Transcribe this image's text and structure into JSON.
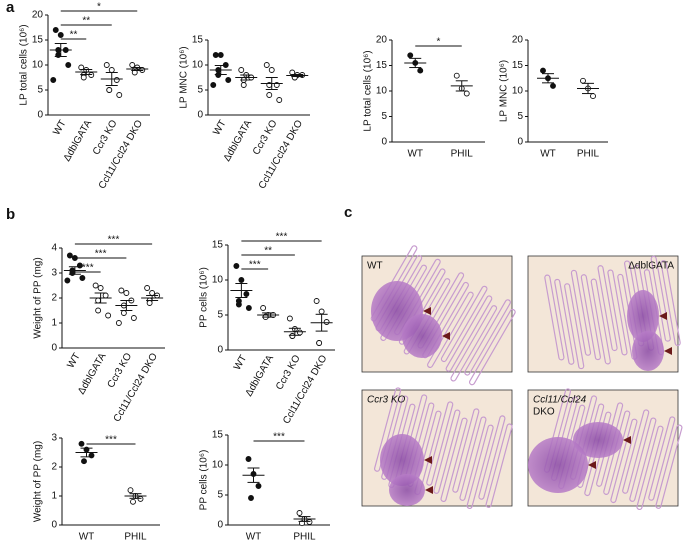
{
  "panel_labels": [
    "a",
    "b",
    "c"
  ],
  "chart_data": [
    {
      "type": "dot",
      "y_label": "LP total cells (10⁶)",
      "categories": [
        "WT",
        "ΔdblGATA",
        "Ccr3 KO",
        "Ccl11/Ccl24 DKO"
      ],
      "filled": [
        true,
        false,
        false,
        false
      ],
      "points": [
        [
          17,
          16,
          13,
          13,
          12,
          10,
          7
        ],
        [
          9.5,
          9,
          8,
          8,
          7.5
        ],
        [
          10,
          9,
          7,
          5,
          5,
          4
        ],
        [
          10,
          9.5,
          9,
          9,
          8.5
        ]
      ],
      "mean": [
        13,
        8.6,
        7.2,
        9.2
      ],
      "sem": [
        1.3,
        0.5,
        1.3,
        0.3
      ],
      "ylim": [
        0,
        20
      ],
      "yticks": [
        0,
        5,
        10,
        15,
        20
      ],
      "significance": [
        {
          "pair": [
            "WT",
            "ΔdblGATA"
          ],
          "label": "**"
        },
        {
          "pair": [
            "WT",
            "Ccr3 KO"
          ],
          "label": "**"
        },
        {
          "pair": [
            "WT",
            "Ccl11/Ccl24 DKO"
          ],
          "label": "*"
        }
      ]
    },
    {
      "type": "dot",
      "y_label": "LP MNC (10⁶)",
      "categories": [
        "WT",
        "ΔdblGATA",
        "Ccr3 KO",
        "Ccl11/Ccl24 DKO"
      ],
      "filled": [
        true,
        false,
        false,
        false
      ],
      "points": [
        [
          12,
          12,
          10,
          9,
          8,
          7,
          6
        ],
        [
          9,
          8,
          7.5,
          7,
          6
        ],
        [
          10,
          9,
          6,
          6,
          4,
          3
        ],
        [
          8.5,
          8,
          8,
          7.5,
          7.5
        ]
      ],
      "mean": [
        9,
        7.5,
        6.3,
        7.9
      ],
      "sem": [
        0.9,
        0.5,
        1.2,
        0.2
      ],
      "ylim": [
        0,
        15
      ],
      "yticks": [
        0,
        5,
        10,
        15
      ],
      "significance": []
    },
    {
      "type": "dot",
      "y_label": "LP total cells (10⁶)",
      "categories": [
        "WT",
        "PHIL"
      ],
      "filled": [
        true,
        false
      ],
      "points": [
        [
          17,
          15.5,
          14
        ],
        [
          13,
          10.5,
          9.5
        ]
      ],
      "mean": [
        15.5,
        11
      ],
      "sem": [
        0.9,
        1
      ],
      "ylim": [
        0,
        20
      ],
      "yticks": [
        0,
        5,
        10,
        15,
        20
      ],
      "significance": [
        {
          "pair": [
            "WT",
            "PHIL"
          ],
          "label": "*"
        }
      ]
    },
    {
      "type": "dot",
      "y_label": "LP MNC (10⁶)",
      "categories": [
        "WT",
        "PHIL"
      ],
      "filled": [
        true,
        false
      ],
      "points": [
        [
          14,
          12.5,
          11
        ],
        [
          12,
          10.5,
          9
        ]
      ],
      "mean": [
        12.5,
        10.5
      ],
      "sem": [
        0.9,
        1
      ],
      "ylim": [
        0,
        20
      ],
      "yticks": [
        0,
        5,
        10,
        15,
        20
      ],
      "significance": []
    },
    {
      "type": "dot",
      "y_label": "Weight of PP (mg)",
      "categories": [
        "WT",
        "ΔdblGATA",
        "Ccr3 KO",
        "Ccl11/Ccl24 DKO"
      ],
      "filled": [
        true,
        false,
        false,
        false
      ],
      "points": [
        [
          3.7,
          3.6,
          3.3,
          3.1,
          3.0,
          2.8,
          2.7
        ],
        [
          2.5,
          2.4,
          2.1,
          1.9,
          1.5,
          1.3
        ],
        [
          2.3,
          2.2,
          1.9,
          1.7,
          1.4,
          1.2,
          1.0
        ],
        [
          2.4,
          2.2,
          2.1,
          1.9,
          1.8
        ]
      ],
      "mean": [
        3.1,
        2.0,
        1.7,
        2.0
      ],
      "sem": [
        0.15,
        0.2,
        0.2,
        0.1
      ],
      "ylim": [
        0,
        4
      ],
      "yticks": [
        0,
        1,
        2,
        3,
        4
      ],
      "significance": [
        {
          "pair": [
            "WT",
            "ΔdblGATA"
          ],
          "label": "***"
        },
        {
          "pair": [
            "WT",
            "Ccr3 KO"
          ],
          "label": "***"
        },
        {
          "pair": [
            "WT",
            "Ccl11/Ccl24 DKO"
          ],
          "label": "***"
        }
      ]
    },
    {
      "type": "dot",
      "y_label": "PP cells (10⁶)",
      "categories": [
        "WT",
        "ΔdblGATA",
        "Ccr3 KO",
        "Ccl11/Ccl24 DKO"
      ],
      "filled": [
        true,
        false,
        false,
        false
      ],
      "points": [
        [
          12,
          10,
          8,
          7,
          6.5,
          6
        ],
        [
          6,
          5,
          5,
          4.8,
          4.7
        ],
        [
          4.5,
          3,
          2.5,
          2,
          2
        ],
        [
          7,
          5.5,
          4,
          1,
          1
        ]
      ],
      "mean": [
        8.5,
        5,
        2.6,
        3.9
      ],
      "sem": [
        1,
        0.3,
        0.5,
        1.2
      ],
      "ylim": [
        0,
        15
      ],
      "yticks": [
        0,
        5,
        10,
        15
      ],
      "significance": [
        {
          "pair": [
            "WT",
            "ΔdblGATA"
          ],
          "label": "***"
        },
        {
          "pair": [
            "WT",
            "Ccr3 KO"
          ],
          "label": "**"
        },
        {
          "pair": [
            "WT",
            "Ccl11/Ccl24 DKO"
          ],
          "label": "***"
        }
      ]
    },
    {
      "type": "dot",
      "y_label": "Weight of PP (mg)",
      "categories": [
        "WT",
        "PHIL"
      ],
      "filled": [
        true,
        false
      ],
      "points": [
        [
          2.8,
          2.6,
          2.4,
          2.2
        ],
        [
          1.2,
          1.0,
          0.9,
          0.8
        ]
      ],
      "mean": [
        2.5,
        1
      ],
      "sem": [
        0.15,
        0.08
      ],
      "ylim": [
        0,
        3
      ],
      "yticks": [
        0,
        1,
        2,
        3
      ],
      "significance": [
        {
          "pair": [
            "WT",
            "PHIL"
          ],
          "label": "***"
        }
      ]
    },
    {
      "type": "dot",
      "y_label": "PP cells (10⁶)",
      "categories": [
        "WT",
        "PHIL"
      ],
      "filled": [
        true,
        false
      ],
      "points": [
        [
          11,
          8.5,
          6.5,
          4.5
        ],
        [
          2,
          1,
          0.5,
          0.3
        ]
      ],
      "mean": [
        8.3,
        1
      ],
      "sem": [
        1.2,
        0.4
      ],
      "ylim": [
        0,
        15
      ],
      "yticks": [
        0,
        5,
        10,
        15
      ],
      "significance": [
        {
          "pair": [
            "WT",
            "PHIL"
          ],
          "label": "***"
        }
      ]
    }
  ],
  "histology": [
    {
      "label_lines": [
        "WT"
      ]
    },
    {
      "label_lines": [
        "ΔdblGATA"
      ]
    },
    {
      "label_lines": [
        "Ccr3 KO"
      ]
    },
    {
      "label_lines": [
        "Ccl11/Ccl24",
        "DKO"
      ]
    }
  ]
}
